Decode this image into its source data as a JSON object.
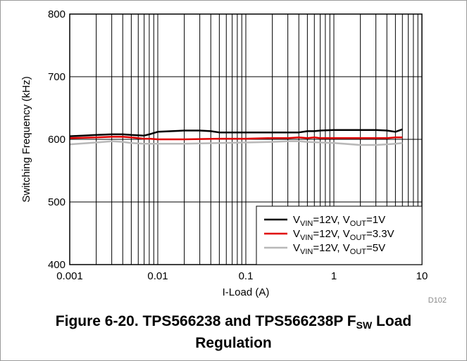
{
  "chart_data": {
    "type": "line",
    "x_scale": "log",
    "xlim": [
      0.001,
      10
    ],
    "ylim": [
      400,
      800
    ],
    "xlabel": "I-Load (A)",
    "ylabel": "Switching Frequency (kHz)",
    "x_tick_labels": [
      "0.001",
      "0.01",
      "0.1",
      "1",
      "10"
    ],
    "x_tick_values": [
      0.001,
      0.01,
      0.1,
      1,
      10
    ],
    "y_tick_labels": [
      "400",
      "500",
      "600",
      "700",
      "800"
    ],
    "y_tick_values": [
      400,
      500,
      600,
      700,
      800
    ],
    "grid": true,
    "legend_position": "bottom-right",
    "figure_code": "D102",
    "series": [
      {
        "name": "V_VIN=12V, V_OUT=1V",
        "color": "#000000",
        "x": [
          0.001,
          0.002,
          0.003,
          0.004,
          0.005,
          0.007,
          0.008,
          0.01,
          0.02,
          0.03,
          0.04,
          0.05,
          0.1,
          0.2,
          0.3,
          0.4,
          0.5,
          0.6,
          0.7,
          1,
          2,
          3,
          4,
          5,
          6
        ],
        "y": [
          605,
          607,
          608,
          608,
          607,
          606,
          608,
          612,
          614,
          614,
          613,
          611,
          611,
          611,
          611,
          611,
          613,
          613,
          614,
          615,
          615,
          615,
          614,
          612,
          616
        ]
      },
      {
        "name": "V_VIN=12V, V_OUT=3.3V",
        "color": "#e00000",
        "x": [
          0.001,
          0.002,
          0.003,
          0.004,
          0.005,
          0.007,
          0.008,
          0.01,
          0.02,
          0.05,
          0.1,
          0.2,
          0.3,
          0.4,
          0.5,
          0.6,
          0.7,
          1,
          2,
          3,
          4,
          5,
          6
        ],
        "y": [
          602,
          603,
          604,
          604,
          603,
          601,
          601,
          600,
          600,
          601,
          601,
          602,
          602,
          603,
          602,
          603,
          602,
          602,
          602,
          602,
          602,
          603,
          603
        ]
      },
      {
        "name": "V_VIN=12V, V_OUT=5V",
        "color": "#b8b8b8",
        "x": [
          0.001,
          0.002,
          0.003,
          0.004,
          0.005,
          0.007,
          0.008,
          0.01,
          0.02,
          0.05,
          0.1,
          0.2,
          0.3,
          0.4,
          0.5,
          0.7,
          1,
          2,
          3,
          4,
          5,
          6
        ],
        "y": [
          592,
          595,
          597,
          596,
          594,
          593,
          593,
          593,
          593,
          594,
          595,
          596,
          597,
          597,
          596,
          595,
          594,
          591,
          591,
          592,
          593,
          594
        ]
      }
    ]
  },
  "legend": [
    {
      "pre": "V",
      "sub1": "VIN",
      "mid": "=12V, V",
      "sub2": "OUT",
      "post": "=1V",
      "color": "#000000"
    },
    {
      "pre": "V",
      "sub1": "VIN",
      "mid": "=12V, V",
      "sub2": "OUT",
      "post": "=3.3V",
      "color": "#e00000"
    },
    {
      "pre": "V",
      "sub1": "VIN",
      "mid": "=12V, V",
      "sub2": "OUT",
      "post": "=5V",
      "color": "#b8b8b8"
    }
  ],
  "caption": {
    "line1_pre": "Figure 6-20. TPS566238 and TPS566238P F",
    "line1_sub": "SW",
    "line1_post": " Load",
    "line2": "Regulation"
  }
}
